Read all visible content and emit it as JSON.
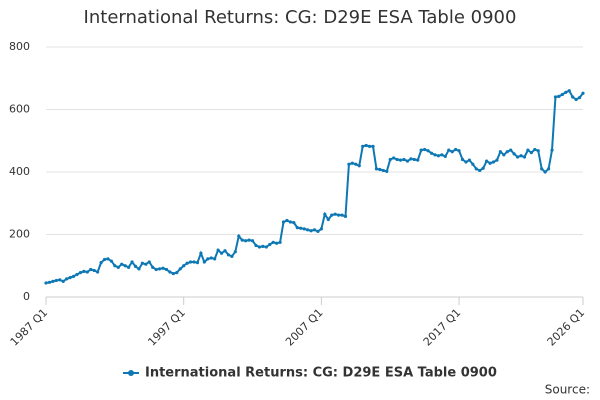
{
  "chart_data": {
    "type": "line",
    "title": "International Returns: CG: D29E ESA Table 0900",
    "source": "Source:",
    "categories": [
      "1987 Q1",
      null,
      null,
      null,
      null,
      null,
      null,
      null,
      null,
      null,
      null,
      null,
      null,
      null,
      null,
      null,
      null,
      null,
      null,
      null,
      null,
      null,
      null,
      null,
      null,
      null,
      null,
      null,
      null,
      null,
      null,
      null,
      null,
      null,
      null,
      null,
      null,
      null,
      null,
      null,
      "1997 Q1",
      null,
      null,
      null,
      null,
      null,
      null,
      null,
      null,
      null,
      null,
      null,
      null,
      null,
      null,
      null,
      null,
      null,
      null,
      null,
      null,
      null,
      null,
      null,
      null,
      null,
      null,
      null,
      null,
      null,
      null,
      null,
      null,
      null,
      null,
      null,
      null,
      null,
      null,
      null,
      "2007 Q1",
      null,
      null,
      null,
      null,
      null,
      null,
      null,
      null,
      null,
      null,
      null,
      null,
      null,
      null,
      null,
      null,
      null,
      null,
      null,
      null,
      null,
      null,
      null,
      null,
      null,
      null,
      null,
      null,
      null,
      null,
      null,
      null,
      null,
      null,
      null,
      null,
      null,
      null,
      null,
      "2017 Q1",
      null,
      null,
      null,
      null,
      null,
      null,
      null,
      null,
      null,
      null,
      null,
      null,
      null,
      null,
      null,
      null,
      null,
      null,
      null,
      null,
      null,
      null,
      null,
      null,
      null,
      null,
      null,
      null,
      null,
      null,
      null,
      null,
      null,
      null,
      null,
      "2026 Q1"
    ],
    "series": [
      {
        "name": "International Returns: CG: D29E ESA Table 0900",
        "color": "#0e78b5",
        "values": [
          45,
          47,
          50,
          53,
          55,
          50,
          58,
          62,
          66,
          72,
          78,
          82,
          80,
          88,
          85,
          80,
          110,
          120,
          122,
          115,
          100,
          95,
          105,
          100,
          95,
          112,
          98,
          90,
          108,
          105,
          112,
          95,
          88,
          90,
          92,
          88,
          80,
          75,
          78,
          90,
          100,
          108,
          112,
          112,
          110,
          140,
          112,
          122,
          125,
          122,
          150,
          140,
          148,
          135,
          130,
          145,
          195,
          182,
          180,
          182,
          180,
          165,
          160,
          162,
          160,
          168,
          175,
          172,
          175,
          240,
          245,
          240,
          238,
          222,
          220,
          218,
          215,
          212,
          215,
          210,
          218,
          265,
          248,
          262,
          265,
          262,
          262,
          258,
          425,
          428,
          425,
          420,
          482,
          485,
          482,
          482,
          410,
          408,
          405,
          402,
          440,
          445,
          440,
          438,
          440,
          435,
          442,
          440,
          438,
          470,
          472,
          468,
          460,
          455,
          452,
          455,
          450,
          470,
          465,
          472,
          468,
          440,
          432,
          438,
          425,
          410,
          405,
          412,
          435,
          428,
          432,
          438,
          465,
          455,
          465,
          470,
          458,
          448,
          452,
          448,
          470,
          462,
          472,
          468,
          410,
          400,
          410,
          470,
          640,
          642,
          648,
          655,
          660,
          640,
          632,
          638,
          652
        ]
      }
    ],
    "ylim": [
      0,
      800
    ],
    "yticks": [
      0,
      200,
      400,
      600,
      800
    ],
    "grid": true
  }
}
